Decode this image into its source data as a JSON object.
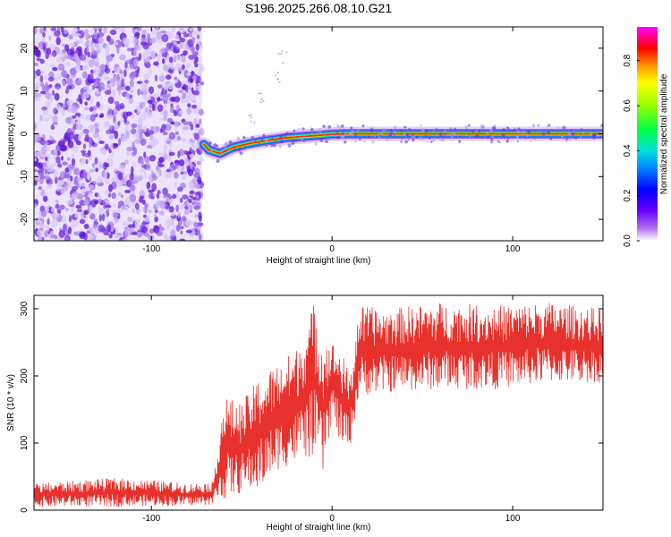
{
  "figure": {
    "title": "S196.2025.266.08.10.G21"
  },
  "chart_data": [
    {
      "type": "heatmap",
      "title": "S196.2025.266.08.10.G21",
      "xlabel": "Height of straight line (km)",
      "ylabel": "Frequency (Hz)",
      "xlim": [
        -165,
        150
      ],
      "ylim": [
        -25,
        25
      ],
      "x_ticks": [
        -100,
        0,
        100
      ],
      "y_ticks": [
        -20,
        -10,
        0,
        10,
        20
      ],
      "colorbar": {
        "label": "Normalized spectral amplitude",
        "range": [
          0.0,
          0.95
        ],
        "ticks": [
          0.0,
          0.2,
          0.4,
          0.6,
          0.8
        ],
        "colormap": "rainbow (purple-blue-cyan-green-yellow-red-magenta)"
      },
      "noise_region": {
        "x_range": [
          -165,
          -72
        ],
        "freq_range": [
          -25,
          25
        ],
        "amplitude": "0.0-0.2"
      },
      "ridge": {
        "description": "carrier frequency ridge",
        "points": [
          {
            "x": -71,
            "freq": -2.5
          },
          {
            "x": -68,
            "freq": -3.8
          },
          {
            "x": -62,
            "freq": -4.6
          },
          {
            "x": -55,
            "freq": -3.2
          },
          {
            "x": -45,
            "freq": -2.2
          },
          {
            "x": -35,
            "freq": -1.5
          },
          {
            "x": -25,
            "freq": -0.9
          },
          {
            "x": -15,
            "freq": -0.6
          },
          {
            "x": -5,
            "freq": -0.3
          },
          {
            "x": 0,
            "freq": -0.1
          },
          {
            "x": 10,
            "freq": 0.0
          },
          {
            "x": 50,
            "freq": 0.0
          },
          {
            "x": 100,
            "freq": 0.0
          },
          {
            "x": 150,
            "freq": 0.0
          }
        ]
      },
      "scatter_streak": [
        {
          "x": -45,
          "freq": 3
        },
        {
          "x": -38,
          "freq": 8
        },
        {
          "x": -30,
          "freq": 13
        },
        {
          "x": -27,
          "freq": 18
        }
      ]
    },
    {
      "type": "line",
      "title": "",
      "xlabel": "Height of straight line (km)",
      "ylabel": "SNR (10 * v/v)",
      "xlim": [
        -165,
        150
      ],
      "ylim": [
        0,
        320
      ],
      "x_ticks": [
        -100,
        0,
        100
      ],
      "y_ticks": [
        0,
        100,
        200,
        300
      ],
      "color": "#e8312c",
      "envelope": [
        {
          "x": -165,
          "min": 5,
          "max": 40
        },
        {
          "x": -120,
          "min": 5,
          "max": 48
        },
        {
          "x": -100,
          "min": 6,
          "max": 45
        },
        {
          "x": -80,
          "min": 6,
          "max": 40
        },
        {
          "x": -66,
          "min": 8,
          "max": 42
        },
        {
          "x": -60,
          "min": 15,
          "max": 170
        },
        {
          "x": -50,
          "min": 25,
          "max": 160
        },
        {
          "x": -40,
          "min": 30,
          "max": 200
        },
        {
          "x": -30,
          "min": 60,
          "max": 220
        },
        {
          "x": -20,
          "min": 70,
          "max": 240
        },
        {
          "x": -10,
          "min": 80,
          "max": 310
        },
        {
          "x": -5,
          "min": 50,
          "max": 260
        },
        {
          "x": 0,
          "min": 140,
          "max": 250
        },
        {
          "x": 5,
          "min": 90,
          "max": 240
        },
        {
          "x": 10,
          "min": 95,
          "max": 200
        },
        {
          "x": 15,
          "min": 170,
          "max": 305
        },
        {
          "x": 30,
          "min": 175,
          "max": 300
        },
        {
          "x": 60,
          "min": 180,
          "max": 310
        },
        {
          "x": 90,
          "min": 180,
          "max": 305
        },
        {
          "x": 120,
          "min": 190,
          "max": 310
        },
        {
          "x": 150,
          "min": 190,
          "max": 300
        }
      ]
    }
  ]
}
